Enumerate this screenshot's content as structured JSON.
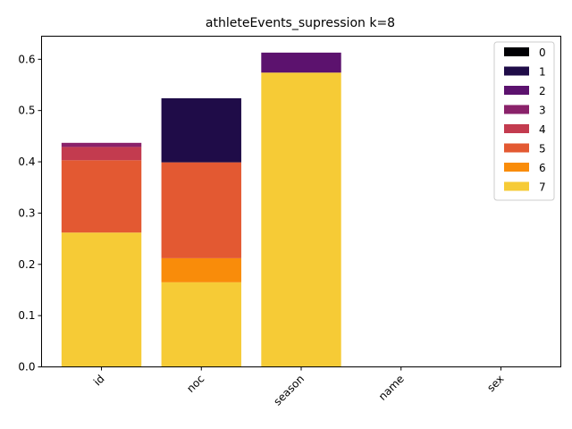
{
  "chart_data": {
    "type": "bar",
    "stacked": true,
    "title": "athleteEvents_supression k=8",
    "xlabel": "",
    "ylabel": "",
    "categories": [
      "id",
      "noc",
      "season",
      "name",
      "sex"
    ],
    "ylim": [
      0,
      0.645
    ],
    "yticks": [
      "0.0",
      "0.1",
      "0.2",
      "0.3",
      "0.4",
      "0.5",
      "0.6"
    ],
    "grid": false,
    "legend_position": "top-right",
    "series": [
      {
        "name": "7",
        "color": "#f6cb36",
        "values": [
          0.262,
          0.165,
          0.574,
          0,
          0
        ]
      },
      {
        "name": "6",
        "color": "#f98c0a",
        "values": [
          0,
          0.047,
          0,
          0,
          0
        ]
      },
      {
        "name": "5",
        "color": "#e35932",
        "values": [
          0.141,
          0.187,
          0,
          0,
          0
        ]
      },
      {
        "name": "4",
        "color": "#c33b4f",
        "values": [
          0.026,
          0,
          0,
          0,
          0
        ]
      },
      {
        "name": "3",
        "color": "#8a226a",
        "values": [
          0.008,
          0,
          0,
          0,
          0
        ]
      },
      {
        "name": "2",
        "color": "#5c126e",
        "values": [
          0,
          0,
          0.039,
          0,
          0
        ]
      },
      {
        "name": "1",
        "color": "#1f0c48",
        "values": [
          0,
          0.125,
          0,
          0,
          0
        ]
      },
      {
        "name": "0",
        "color": "#000004",
        "values": [
          0,
          0,
          0,
          0,
          0
        ]
      }
    ],
    "legend_order": [
      "0",
      "1",
      "2",
      "3",
      "4",
      "5",
      "6",
      "7"
    ]
  }
}
